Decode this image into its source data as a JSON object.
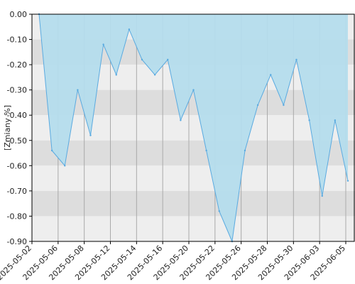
{
  "chart_data": {
    "type": "area",
    "title": "",
    "xlabel": "",
    "ylabel": "[Zmiany %]",
    "ylim": [
      -0.9,
      0.0
    ],
    "yticks": [
      "0.00",
      "-0.10",
      "-0.20",
      "-0.30",
      "-0.40",
      "-0.50",
      "-0.60",
      "-0.70",
      "-0.80",
      "-0.90"
    ],
    "xticks": [
      "2025-05-02",
      "2025-05-06",
      "2025-05-08",
      "2025-05-12",
      "2025-05-14",
      "2025-05-16",
      "2025-05-20",
      "2025-05-22",
      "2025-05-26",
      "2025-05-28",
      "2025-05-30",
      "2025-06-03",
      "2025-06-05"
    ],
    "series": [
      {
        "values": [
          0.0,
          -0.54,
          -0.6,
          -0.3,
          -0.48,
          -0.12,
          -0.24,
          -0.06,
          -0.18,
          -0.24,
          -0.18,
          -0.42,
          -0.3,
          -0.54,
          -0.78,
          -0.9,
          -0.54,
          -0.36,
          -0.24,
          -0.36,
          -0.18,
          -0.42,
          -0.72,
          -0.42,
          -0.66
        ]
      }
    ],
    "grid": true,
    "legend": "none",
    "colors": {
      "fill": "#b4dcec",
      "line": "#5aaae0",
      "band_dark": "#dddddd",
      "band_light": "#eeeeee",
      "grid": "#aaaaaa",
      "axis": "#000000"
    }
  }
}
